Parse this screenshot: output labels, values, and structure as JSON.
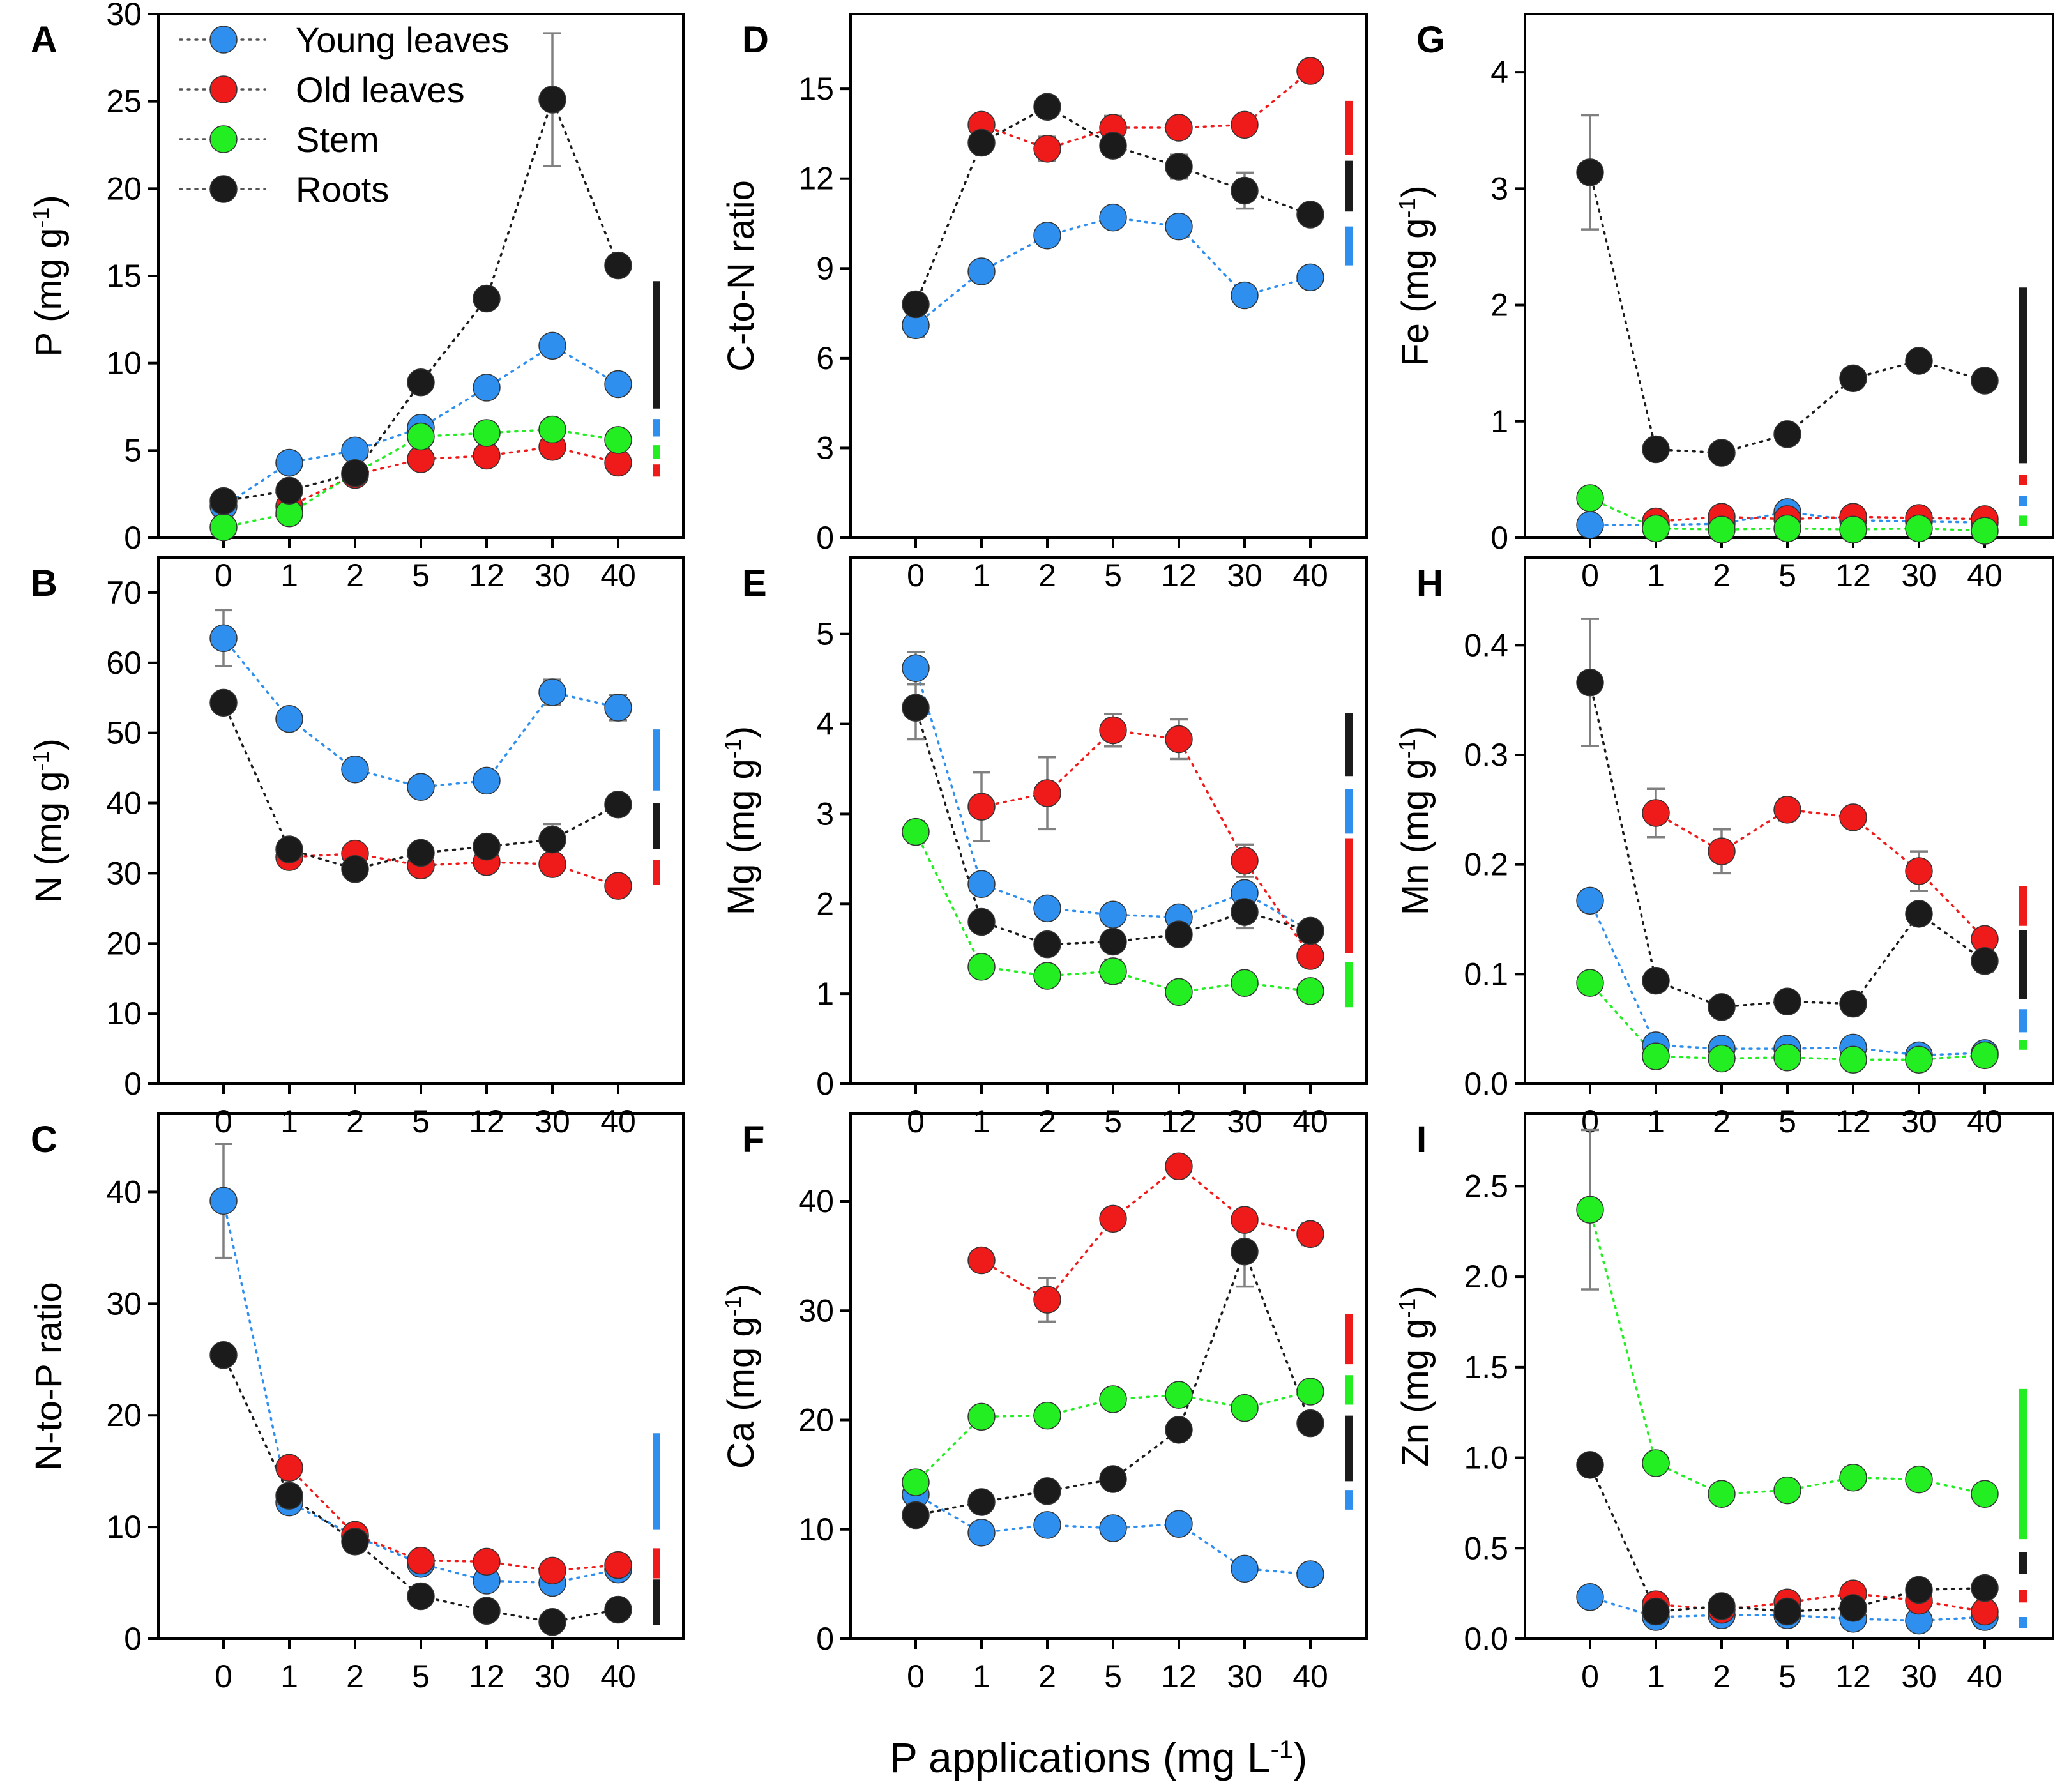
{
  "chart_data": {
    "type": "scatter",
    "x": [
      "0",
      "1",
      "2",
      "5",
      "12",
      "30",
      "40"
    ],
    "xlabel": "P applications (mg L",
    "xlabel_sup": "-1",
    "xlabel_end": ")",
    "legend": [
      {
        "name": "Young leaves",
        "color": "#2e8fef"
      },
      {
        "name": "Old leaves",
        "color": "#ef1a1a"
      },
      {
        "name": "Stem",
        "color": "#22ee22"
      },
      {
        "name": "Roots",
        "color": "#1b1b1b"
      }
    ],
    "series_colors": {
      "young": "#2e8fef",
      "old": "#ef1a1a",
      "stem": "#22ee22",
      "roots": "#1b1b1b"
    },
    "panels": [
      {
        "letter": "A",
        "ylabel": "P (mg g",
        "ylabel_sup": "-1",
        "ylabel_end": ")",
        "ylim": [
          0,
          30
        ],
        "yticks": [
          0,
          5,
          10,
          15,
          20,
          25,
          30
        ],
        "ytick_labels": [
          "0",
          "5",
          "10",
          "15",
          "20",
          "25",
          "30"
        ],
        "series": [
          {
            "key": "young",
            "values": [
              1.8,
              4.3,
              5.0,
              6.3,
              8.6,
              11.0,
              8.8
            ]
          },
          {
            "key": "old",
            "values": [
              null,
              1.8,
              3.6,
              4.5,
              4.7,
              5.2,
              4.3
            ]
          },
          {
            "key": "stem",
            "values": [
              0.6,
              1.4,
              3.7,
              5.8,
              6.0,
              6.2,
              5.6
            ]
          },
          {
            "key": "roots",
            "values": [
              2.1,
              2.7,
              3.7,
              8.9,
              13.7,
              25.1,
              15.6
            ],
            "errors": [
              null,
              null,
              null,
              null,
              null,
              3.8,
              null
            ]
          }
        ],
        "lsd": [
          {
            "key": "roots",
            "low": 7.4,
            "high": 14.7
          },
          {
            "key": "young",
            "low": 5.8,
            "high": 6.8
          },
          {
            "key": "stem",
            "low": 4.5,
            "high": 5.3
          },
          {
            "key": "old",
            "low": 3.5,
            "high": 4.2
          }
        ]
      },
      {
        "letter": "B",
        "ylabel": "N (mg g",
        "ylabel_sup": "-1",
        "ylabel_end": ")",
        "ylim": [
          0,
          75
        ],
        "yticks": [
          0,
          10,
          20,
          30,
          40,
          50,
          60,
          70
        ],
        "ytick_labels": [
          "0",
          "10",
          "20",
          "30",
          "40",
          "50",
          "60",
          "70"
        ],
        "series": [
          {
            "key": "young",
            "values": [
              63.5,
              52.0,
              44.8,
              42.3,
              43.2,
              55.8,
              53.6
            ],
            "errors": [
              4.0,
              null,
              null,
              null,
              null,
              1.8,
              1.8
            ]
          },
          {
            "key": "old",
            "values": [
              null,
              32.3,
              32.8,
              31.1,
              31.6,
              31.3,
              28.2
            ]
          },
          {
            "key": "roots",
            "values": [
              54.3,
              33.4,
              30.6,
              32.9,
              33.8,
              34.8,
              39.8
            ],
            "errors": [
              null,
              null,
              null,
              null,
              null,
              2.2,
              null
            ]
          }
        ],
        "lsd": [
          {
            "key": "young",
            "low": 41.8,
            "high": 50.5
          },
          {
            "key": "roots",
            "low": 33.5,
            "high": 40.0
          },
          {
            "key": "old",
            "low": 28.4,
            "high": 31.9
          }
        ]
      },
      {
        "letter": "C",
        "ylabel": "N-to-P ratio",
        "ylabel_sup": "",
        "ylabel_end": "",
        "ylim": [
          0,
          47
        ],
        "yticks": [
          0,
          10,
          20,
          30,
          40
        ],
        "ytick_labels": [
          "0",
          "10",
          "20",
          "30",
          "40"
        ],
        "series": [
          {
            "key": "young",
            "values": [
              39.2,
              12.2,
              9.2,
              6.7,
              5.2,
              5.0,
              6.2
            ],
            "errors": [
              5.1,
              null,
              null,
              null,
              null,
              null,
              null
            ]
          },
          {
            "key": "old",
            "values": [
              null,
              15.3,
              9.3,
              7.0,
              6.9,
              6.1,
              6.6
            ]
          },
          {
            "key": "roots",
            "values": [
              25.4,
              12.8,
              8.7,
              3.8,
              2.5,
              1.5,
              2.6
            ]
          }
        ],
        "lsd": [
          {
            "key": "young",
            "low": 9.8,
            "high": 18.4
          },
          {
            "key": "old",
            "low": 5.4,
            "high": 8.1
          },
          {
            "key": "roots",
            "low": 1.2,
            "high": 5.3
          }
        ]
      },
      {
        "letter": "D",
        "ylabel": "C-to-N ratio",
        "ylabel_sup": "",
        "ylabel_end": "",
        "ylim": [
          0,
          17.5
        ],
        "yticks": [
          0,
          3,
          6,
          9,
          12,
          15
        ],
        "ytick_labels": [
          "0",
          "3",
          "6",
          "9",
          "12",
          "15"
        ],
        "series": [
          {
            "key": "young",
            "values": [
              7.1,
              8.9,
              10.1,
              10.7,
              10.4,
              8.1,
              8.7
            ],
            "errors": [
              0.4,
              null,
              null,
              null,
              null,
              null,
              null
            ]
          },
          {
            "key": "old",
            "values": [
              null,
              13.8,
              13.0,
              13.7,
              13.7,
              13.8,
              15.6
            ],
            "errors": [
              null,
              null,
              0.4,
              0.4,
              null,
              null,
              null
            ]
          },
          {
            "key": "roots",
            "values": [
              7.8,
              13.2,
              14.4,
              13.1,
              12.4,
              11.6,
              10.8
            ],
            "errors": [
              null,
              null,
              null,
              null,
              0.4,
              0.6,
              null
            ]
          }
        ],
        "lsd": [
          {
            "key": "old",
            "low": 12.8,
            "high": 14.6
          },
          {
            "key": "roots",
            "low": 10.9,
            "high": 12.6
          },
          {
            "key": "young",
            "low": 9.1,
            "high": 10.4
          }
        ]
      },
      {
        "letter": "E",
        "ylabel": "Mg (mg g",
        "ylabel_sup": "-1",
        "ylabel_end": ")",
        "ylim": [
          0,
          5.85
        ],
        "yticks": [
          0,
          1,
          2,
          3,
          4,
          5
        ],
        "ytick_labels": [
          "0",
          "1",
          "2",
          "3",
          "4",
          "5"
        ],
        "series": [
          {
            "key": "young",
            "values": [
              4.62,
              2.22,
              1.95,
              1.88,
              1.85,
              2.12,
              1.7
            ],
            "errors": [
              0.18,
              null,
              null,
              null,
              null,
              null,
              null
            ]
          },
          {
            "key": "old",
            "values": [
              null,
              3.08,
              3.23,
              3.93,
              3.83,
              2.48,
              1.42
            ],
            "errors": [
              null,
              0.38,
              0.4,
              0.18,
              0.22,
              0.18,
              null
            ]
          },
          {
            "key": "stem",
            "values": [
              2.8,
              1.3,
              1.2,
              1.25,
              1.02,
              1.12,
              1.03
            ],
            "errors": [
              0.12,
              null,
              null,
              0.13,
              null,
              null,
              null
            ]
          },
          {
            "key": "roots",
            "values": [
              4.18,
              1.8,
              1.55,
              1.58,
              1.66,
              1.91,
              1.7
            ],
            "errors": [
              0.35,
              null,
              null,
              null,
              null,
              0.18,
              null
            ]
          }
        ],
        "lsd": [
          {
            "key": "roots",
            "low": 3.42,
            "high": 4.12
          },
          {
            "key": "young",
            "low": 2.78,
            "high": 3.28
          },
          {
            "key": "old",
            "low": 1.45,
            "high": 2.73
          },
          {
            "key": "stem",
            "low": 0.85,
            "high": 1.35
          }
        ]
      },
      {
        "letter": "F",
        "ylabel": "Ca (mg g",
        "ylabel_sup": "-1",
        "ylabel_end": ")",
        "ylim": [
          0,
          48
        ],
        "yticks": [
          0,
          10,
          20,
          30,
          40
        ],
        "ytick_labels": [
          "0",
          "10",
          "20",
          "30",
          "40"
        ],
        "series": [
          {
            "key": "young",
            "values": [
              13.2,
              9.7,
              10.4,
              10.1,
              10.5,
              6.4,
              5.9
            ]
          },
          {
            "key": "old",
            "values": [
              null,
              34.6,
              31.0,
              38.4,
              43.2,
              38.3,
              37.0
            ],
            "errors": [
              null,
              null,
              2.0,
              null,
              null,
              null,
              1.0
            ]
          },
          {
            "key": "stem",
            "values": [
              14.3,
              20.3,
              20.4,
              21.9,
              22.3,
              21.1,
              22.6
            ]
          },
          {
            "key": "roots",
            "values": [
              11.3,
              12.5,
              13.5,
              14.6,
              19.1,
              35.4,
              19.7
            ],
            "errors": [
              null,
              null,
              null,
              null,
              null,
              3.2,
              null
            ]
          }
        ],
        "lsd": [
          {
            "key": "old",
            "low": 25.1,
            "high": 29.7
          },
          {
            "key": "stem",
            "low": 21.4,
            "high": 24.1
          },
          {
            "key": "roots",
            "low": 14.4,
            "high": 20.4
          },
          {
            "key": "young",
            "low": 11.8,
            "high": 13.6
          }
        ]
      },
      {
        "letter": "G",
        "ylabel": "Fe (mg g",
        "ylabel_sup": "-1",
        "ylabel_end": ")",
        "ylim": [
          0,
          4.5
        ],
        "yticks": [
          0,
          1,
          2,
          3,
          4
        ],
        "ytick_labels": [
          "0",
          "1",
          "2",
          "3",
          "4"
        ],
        "series": [
          {
            "key": "young",
            "values": [
              0.11,
              0.11,
              0.12,
              0.22,
              0.15,
              0.14,
              0.13
            ]
          },
          {
            "key": "old",
            "values": [
              null,
              0.14,
              0.18,
              0.16,
              0.18,
              0.17,
              0.16
            ]
          },
          {
            "key": "stem",
            "values": [
              0.34,
              0.08,
              0.07,
              0.08,
              0.07,
              0.08,
              0.06
            ]
          },
          {
            "key": "roots",
            "values": [
              3.14,
              0.76,
              0.73,
              0.89,
              1.37,
              1.52,
              1.35
            ],
            "errors": [
              0.49,
              null,
              null,
              null,
              null,
              null,
              null
            ]
          }
        ],
        "lsd": [
          {
            "key": "roots",
            "low": 0.64,
            "high": 2.15
          },
          {
            "key": "old",
            "low": 0.45,
            "high": 0.54
          },
          {
            "key": "young",
            "low": 0.27,
            "high": 0.36
          },
          {
            "key": "stem",
            "low": 0.1,
            "high": 0.19
          }
        ]
      },
      {
        "letter": "H",
        "ylabel": "Mn (mg g",
        "ylabel_sup": "-1",
        "ylabel_end": ")",
        "ylim": [
          0,
          0.48
        ],
        "yticks": [
          0,
          0.1,
          0.2,
          0.3,
          0.4
        ],
        "ytick_labels": [
          "0.0",
          "0.1",
          "0.2",
          "0.3",
          "0.4"
        ],
        "series": [
          {
            "key": "young",
            "values": [
              0.167,
              0.035,
              0.032,
              0.032,
              0.033,
              0.026,
              0.028
            ],
            "errors": [
              0.008,
              null,
              null,
              null,
              null,
              null,
              null
            ]
          },
          {
            "key": "old",
            "values": [
              null,
              0.247,
              0.212,
              0.25,
              0.243,
              0.194,
              0.132
            ],
            "errors": [
              null,
              0.022,
              0.02,
              0.01,
              null,
              0.018,
              null
            ]
          },
          {
            "key": "stem",
            "values": [
              0.092,
              0.025,
              0.023,
              0.024,
              0.022,
              0.022,
              0.026
            ]
          },
          {
            "key": "roots",
            "values": [
              0.366,
              0.094,
              0.07,
              0.075,
              0.073,
              0.155,
              0.112
            ],
            "errors": [
              0.058,
              null,
              null,
              null,
              null,
              null,
              0.01
            ]
          }
        ],
        "lsd": [
          {
            "key": "old",
            "low": 0.144,
            "high": 0.18
          },
          {
            "key": "roots",
            "low": 0.077,
            "high": 0.14
          },
          {
            "key": "young",
            "low": 0.047,
            "high": 0.068
          },
          {
            "key": "stem",
            "low": 0.031,
            "high": 0.04
          }
        ]
      },
      {
        "letter": "I",
        "ylabel": "Zn (mg g",
        "ylabel_sup": "-1",
        "ylabel_end": ")",
        "ylim": [
          0,
          2.9
        ],
        "yticks": [
          0,
          0.5,
          1.0,
          1.5,
          2.0,
          2.5
        ],
        "ytick_labels": [
          "0.0",
          "0.5",
          "1.0",
          "1.5",
          "2.0",
          "2.5"
        ],
        "series": [
          {
            "key": "young",
            "values": [
              0.23,
              0.12,
              0.13,
              0.13,
              0.11,
              0.1,
              0.12
            ]
          },
          {
            "key": "old",
            "values": [
              null,
              0.19,
              0.16,
              0.2,
              0.25,
              0.21,
              0.15
            ]
          },
          {
            "key": "stem",
            "values": [
              2.37,
              0.97,
              0.8,
              0.82,
              0.89,
              0.88,
              0.8
            ],
            "errors": [
              0.44,
              null,
              null,
              null,
              0.06,
              null,
              null
            ]
          },
          {
            "key": "roots",
            "values": [
              0.96,
              0.15,
              0.18,
              0.15,
              0.17,
              0.27,
              0.28
            ]
          }
        ],
        "lsd": [
          {
            "key": "stem",
            "low": 0.55,
            "high": 1.38
          },
          {
            "key": "roots",
            "low": 0.36,
            "high": 0.48
          },
          {
            "key": "old",
            "low": 0.2,
            "high": 0.27
          },
          {
            "key": "young",
            "low": 0.06,
            "high": 0.12
          }
        ]
      }
    ]
  }
}
